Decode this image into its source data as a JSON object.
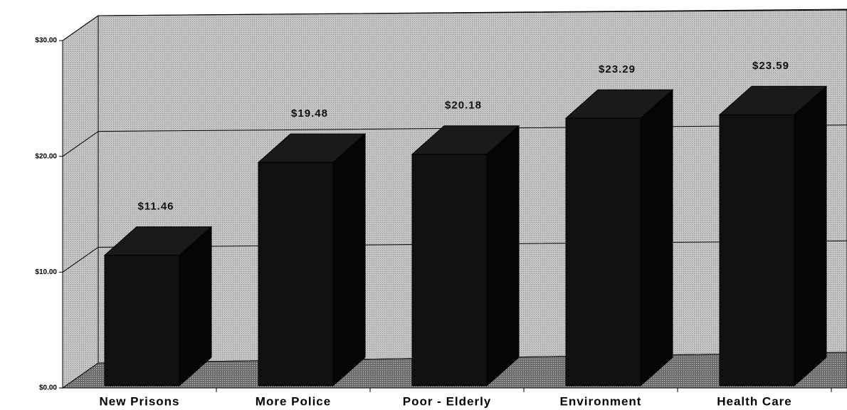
{
  "chart_data": {
    "type": "bar3d",
    "categories": [
      "New Prisons",
      "More Police",
      "Poor - Elderly",
      "Environment",
      "Health Care"
    ],
    "values": [
      11.46,
      19.48,
      20.18,
      23.29,
      23.59
    ],
    "value_labels": [
      "$11.46",
      "$19.48",
      "$20.18",
      "$23.29",
      "$23.59"
    ],
    "color": "#111111",
    "ylim": [
      0,
      30
    ],
    "yticks": [
      {
        "value": 0,
        "label": "$0.00"
      },
      {
        "value": 10,
        "label": "$10.00"
      },
      {
        "value": 20,
        "label": "$20.00"
      },
      {
        "value": 30,
        "label": "$30.00"
      }
    ],
    "grid": true
  }
}
